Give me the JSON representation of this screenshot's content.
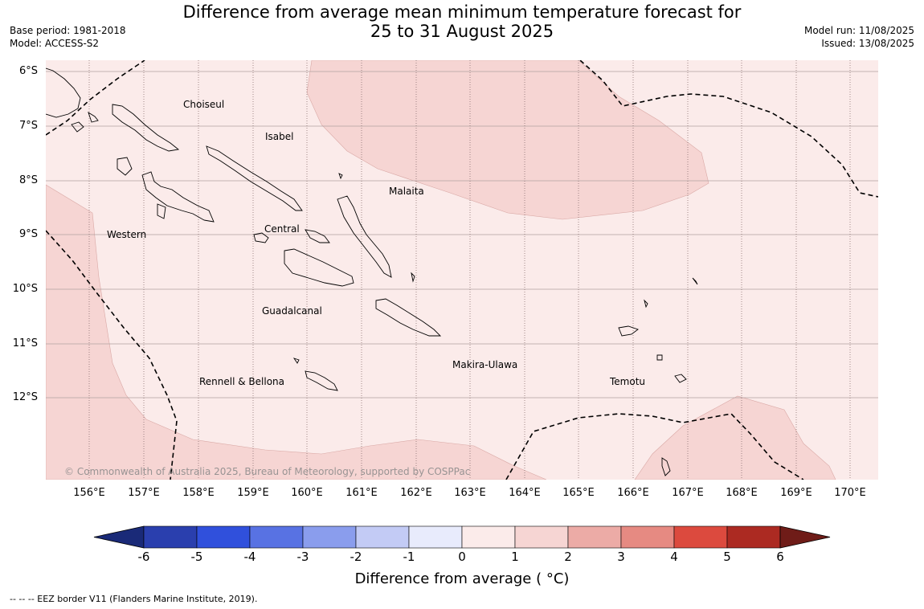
{
  "title": {
    "line1": "Difference from average mean minimum temperature forecast for",
    "line2": "25 to 31 August 2025"
  },
  "meta_left": {
    "base_period": "Base period: 1981-2018",
    "model": "Model: ACCESS-S2"
  },
  "meta_right": {
    "model_run": "Model run: 11/08/2025",
    "issued": "Issued: 13/08/2025"
  },
  "map": {
    "latitude_labels": [
      "6°S",
      "7°S",
      "8°S",
      "9°S",
      "10°S",
      "11°S",
      "12°S"
    ],
    "longitude_labels": [
      "156°E",
      "157°E",
      "158°E",
      "159°E",
      "160°E",
      "161°E",
      "162°E",
      "163°E",
      "164°E",
      "165°E",
      "166°E",
      "167°E",
      "168°E",
      "169°E",
      "170°E"
    ],
    "regions": [
      "Choiseul",
      "Isabel",
      "Malaita",
      "Western",
      "Central",
      "Guadalcanal",
      "Makira-Ulawa",
      "Temotu",
      "Rennell & Bellona"
    ],
    "copyright": "© Commonwealth of Australia 2025, Bureau of Meteorology, supported by COSPPac",
    "fill_colors": {
      "0_to_1": "#fbebea",
      "1_to_2": "#f6d5d3",
      "land_outline": "#000000",
      "eez_border": "#000000"
    }
  },
  "colorbar": {
    "ticks": [
      "-6",
      "-5",
      "-4",
      "-3",
      "-2",
      "-1",
      "0",
      "1",
      "2",
      "3",
      "4",
      "5",
      "6"
    ],
    "colors": [
      "#1a2a78",
      "#2a3fae",
      "#3050dc",
      "#5872e3",
      "#8a9ded",
      "#c3cbf5",
      "#e8ebfc",
      "#fbebea",
      "#f6d5d3",
      "#ecaba6",
      "#e68a82",
      "#dc4a3e",
      "#ac2a22",
      "#6f1c18"
    ],
    "label": "Difference from average ( °C)"
  },
  "footnote": "--  --  -- EEZ border V11 (Flanders Marine Institute, 2019)."
}
